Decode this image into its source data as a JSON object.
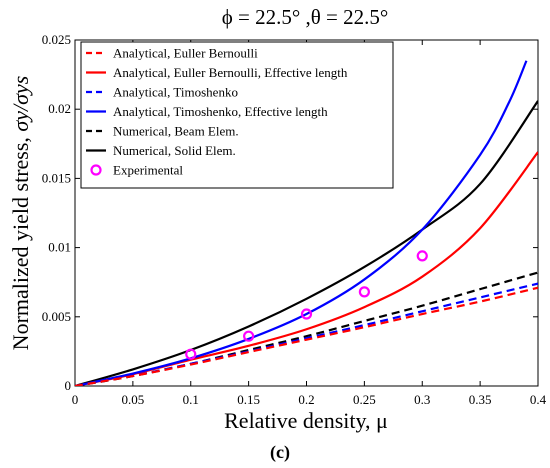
{
  "chart_data": {
    "type": "line",
    "title": "ϕ = 22.5° ,θ = 22.5°",
    "xlabel": "Relative density, μ",
    "ylabel": "Normalized yield stress, σ_y/σ_ys",
    "ylabel_main": "Normalized yield stress, ",
    "ylabel_math": "σy/σys",
    "caption": "(c)",
    "xlim": [
      0,
      0.4
    ],
    "ylim": [
      0,
      0.025
    ],
    "xticks": [
      0,
      0.05,
      0.1,
      0.15,
      0.2,
      0.25,
      0.3,
      0.35,
      0.4
    ],
    "xtick_labels": [
      "0",
      "0.05",
      "0.1",
      "0.15",
      "0.2",
      "0.25",
      "0.3",
      "0.35",
      "0.4"
    ],
    "yticks": [
      0,
      0.005,
      0.01,
      0.015,
      0.02,
      0.025
    ],
    "ytick_labels": [
      "0",
      "0.005",
      "0.01",
      "0.015",
      "0.02",
      "0.025"
    ],
    "legend_position": "top-left",
    "series": [
      {
        "name": "Analytical, Euller Bernoulli",
        "color": "#ff0000",
        "style": "dashed",
        "x": [
          0,
          0.05,
          0.1,
          0.15,
          0.2,
          0.25,
          0.3,
          0.35,
          0.4
        ],
        "y": [
          0,
          0.00072,
          0.00155,
          0.00245,
          0.00335,
          0.00425,
          0.0052,
          0.0061,
          0.0071
        ]
      },
      {
        "name": "Analytical, Euller Bernoulli, Effective length",
        "color": "#ff0000",
        "style": "solid",
        "x": [
          0,
          0.05,
          0.1,
          0.15,
          0.2,
          0.25,
          0.3,
          0.35,
          0.4
        ],
        "y": [
          0,
          0.00085,
          0.0019,
          0.0029,
          0.0041,
          0.0057,
          0.0079,
          0.0114,
          0.0169
        ]
      },
      {
        "name": "Analytical, Timoshenko",
        "color": "#0000ff",
        "style": "dashed",
        "x": [
          0,
          0.05,
          0.1,
          0.15,
          0.2,
          0.25,
          0.3,
          0.35,
          0.4
        ],
        "y": [
          0,
          0.00074,
          0.0016,
          0.0025,
          0.00345,
          0.0044,
          0.0054,
          0.0064,
          0.0074
        ]
      },
      {
        "name": "Analytical, Timoshenko, Effective length",
        "color": "#0000ff",
        "style": "solid",
        "x": [
          0,
          0.05,
          0.1,
          0.15,
          0.2,
          0.25,
          0.3,
          0.35,
          0.375,
          0.39
        ],
        "y": [
          0,
          0.0009,
          0.002,
          0.0034,
          0.0052,
          0.0077,
          0.0113,
          0.0167,
          0.0205,
          0.0235
        ]
      },
      {
        "name": "Numerical, Beam Elem.",
        "color": "#000000",
        "style": "dashed",
        "x": [
          0,
          0.05,
          0.1,
          0.15,
          0.2,
          0.25,
          0.3,
          0.35,
          0.4
        ],
        "y": [
          0,
          0.00072,
          0.0016,
          0.0026,
          0.0036,
          0.0047,
          0.0058,
          0.007,
          0.0082
        ]
      },
      {
        "name": "Numerical, Solid Elem.",
        "color": "#000000",
        "style": "solid",
        "x": [
          0,
          0.05,
          0.1,
          0.15,
          0.2,
          0.25,
          0.3,
          0.35,
          0.4
        ],
        "y": [
          0,
          0.0012,
          0.0026,
          0.0043,
          0.0063,
          0.0086,
          0.0113,
          0.0146,
          0.0206
        ]
      },
      {
        "name": "Experimental",
        "color": "#ff00ff",
        "style": "marker",
        "x": [
          0.1,
          0.15,
          0.2,
          0.25,
          0.3
        ],
        "y": [
          0.0023,
          0.0036,
          0.0052,
          0.0068,
          0.0094
        ]
      }
    ]
  }
}
